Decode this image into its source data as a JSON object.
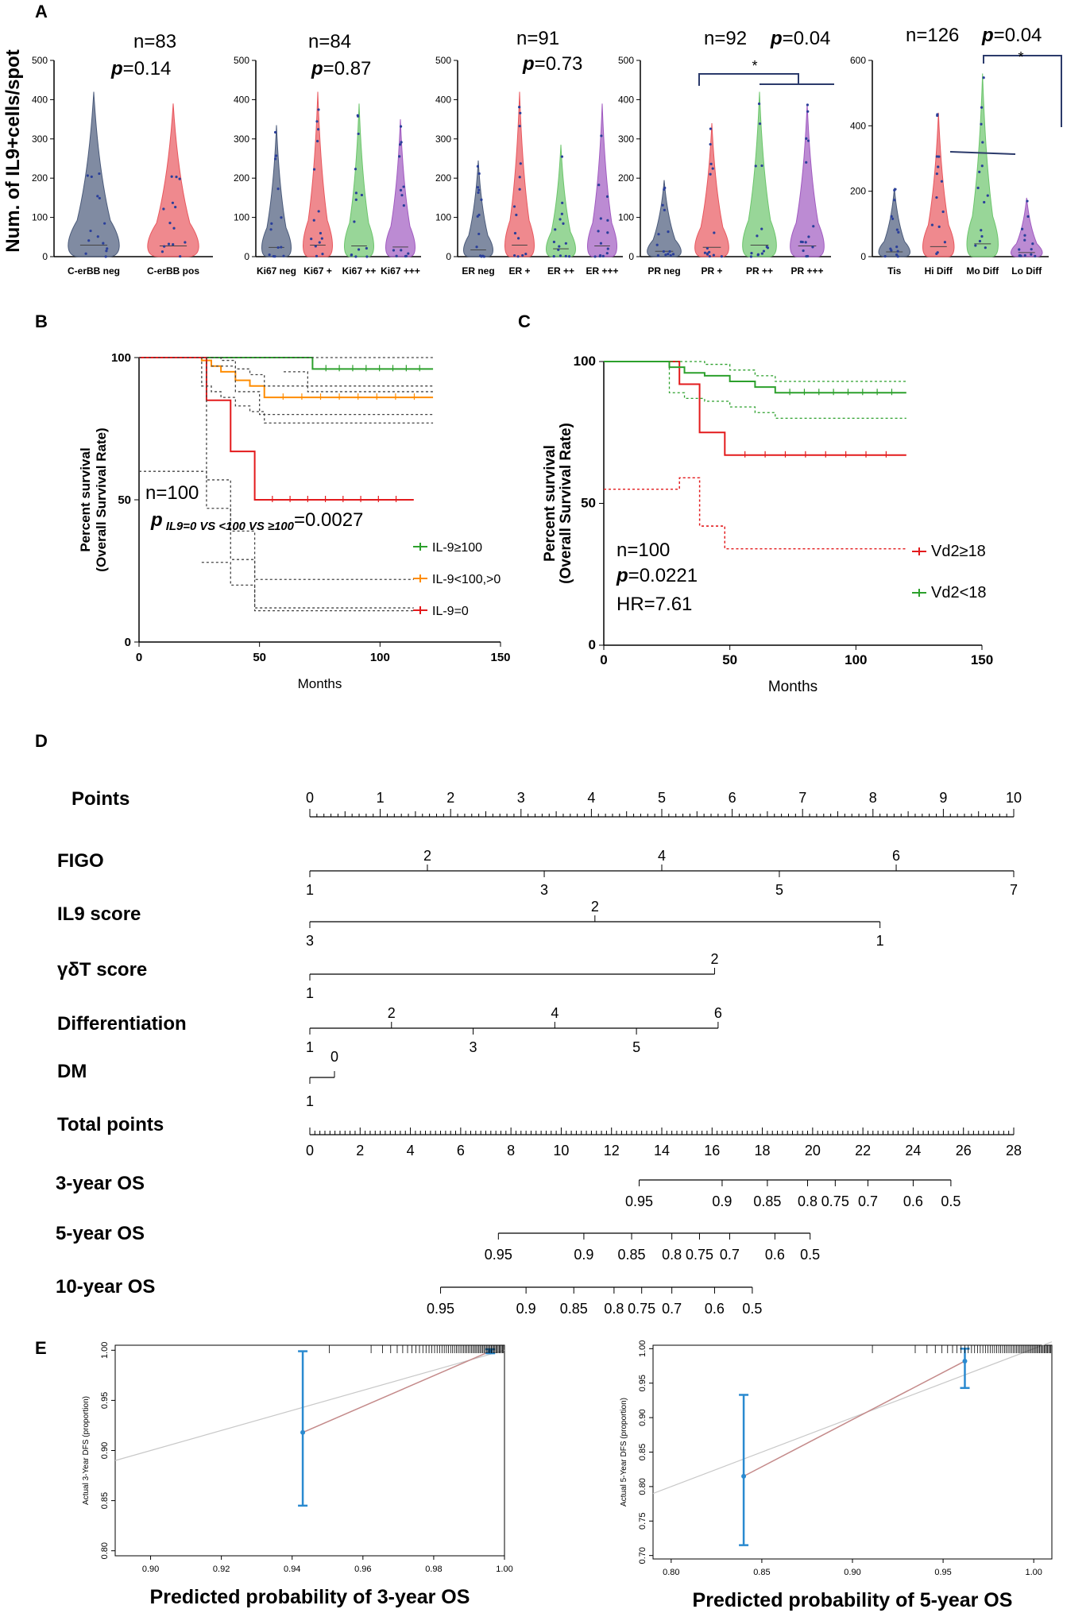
{
  "panel_labels": {
    "a": "A",
    "b": "B",
    "c": "C",
    "d": "D",
    "e": "E"
  },
  "chart_data": [
    {
      "id": "A1",
      "type": "violin",
      "ylabel": "Num. of IL9+cells/spot",
      "ylim": [
        0,
        500
      ],
      "yticks": [
        "0",
        "100",
        "200",
        "300",
        "400",
        "500"
      ],
      "categories": [
        "C-erBB neg",
        "C-erBB pos"
      ],
      "colors": [
        "#4a5a7a",
        "#e8575e"
      ],
      "n_label": "n=83",
      "p_label": "p",
      "p_value": "=0.14",
      "approx_max": [
        420,
        390
      ]
    },
    {
      "id": "A2",
      "type": "violin",
      "ylim": [
        0,
        500
      ],
      "yticks": [
        "0",
        "100",
        "200",
        "300",
        "400",
        "500"
      ],
      "categories": [
        "Ki67 neg",
        "Ki67 +",
        "Ki67 ++",
        "Ki67 +++"
      ],
      "colors": [
        "#4a5a7a",
        "#e8575e",
        "#6cc56c",
        "#a05ac0"
      ],
      "n_label": "n=84",
      "p_label": "p",
      "p_value": "=0.87",
      "approx_max": [
        335,
        420,
        390,
        350
      ]
    },
    {
      "id": "A3",
      "type": "violin",
      "ylim": [
        0,
        500
      ],
      "yticks": [
        "0",
        "100",
        "200",
        "300",
        "400",
        "500"
      ],
      "categories": [
        "ER neg",
        "ER +",
        "ER ++",
        "ER +++"
      ],
      "colors": [
        "#4a5a7a",
        "#e8575e",
        "#6cc56c",
        "#a05ac0"
      ],
      "n_label": "n=91",
      "p_label": "p",
      "p_value": "=0.73",
      "approx_max": [
        245,
        420,
        285,
        390
      ]
    },
    {
      "id": "A4",
      "type": "violin",
      "ylim": [
        0,
        500
      ],
      "yticks": [
        "0",
        "100",
        "200",
        "300",
        "400",
        "500"
      ],
      "categories": [
        "PR neg",
        "PR +",
        "PR ++",
        "PR +++"
      ],
      "colors": [
        "#4a5a7a",
        "#e8575e",
        "#6cc56c",
        "#a05ac0"
      ],
      "n_label": "n=92",
      "p_label": "p",
      "p_value": "=0.04",
      "star": "*",
      "approx_max": [
        195,
        340,
        420,
        390
      ]
    },
    {
      "id": "A5",
      "type": "violin",
      "ylim": [
        0,
        600
      ],
      "yticks": [
        "0",
        "200",
        "400",
        "600"
      ],
      "categories": [
        "Tis",
        "Hi Diff",
        "Mo Diff",
        "Lo Diff"
      ],
      "colors": [
        "#4a5a7a",
        "#e8575e",
        "#6cc56c",
        "#a05ac0"
      ],
      "n_label": "n=126",
      "p_label": "p",
      "p_value": "=0.04",
      "star": "*",
      "approx_max": [
        210,
        440,
        560,
        180
      ]
    },
    {
      "id": "B",
      "type": "line",
      "title": "",
      "xlabel": "Months",
      "ylabel1": "Percent survival",
      "ylabel2": "(Overall Survival Rate)",
      "xlim": [
        0,
        150
      ],
      "ylim": [
        0,
        100
      ],
      "xticks": [
        "0",
        "50",
        "100",
        "150"
      ],
      "yticks": [
        "0",
        "50",
        "100"
      ],
      "n_label": "n=100",
      "p_label": "p",
      "p_sub": "IL9=0 VS <100 VS ≥100",
      "p_value": "=0.0027",
      "series": [
        {
          "name": "IL-9≥100",
          "color": "#2ca02c",
          "x": [
            0,
            26,
            70,
            72,
            122
          ],
          "y": [
            100,
            100,
            100,
            96,
            96
          ]
        },
        {
          "name": "IL-9<100,>0",
          "color": "#ff8c00",
          "x": [
            0,
            26,
            30,
            34,
            40,
            46,
            52,
            122
          ],
          "y": [
            100,
            99,
            97,
            95,
            92,
            90,
            86,
            86
          ]
        },
        {
          "name": "IL-9=0",
          "color": "#e31a1c",
          "x": [
            0,
            26,
            28,
            38,
            48,
            114
          ],
          "y": [
            100,
            100,
            85,
            67,
            50,
            50
          ]
        }
      ]
    },
    {
      "id": "C",
      "type": "line",
      "xlabel": "Months",
      "ylabel1": "Percent survival",
      "ylabel2": "(Overall Survival Rate)",
      "xlim": [
        0,
        150
      ],
      "ylim": [
        0,
        100
      ],
      "xticks": [
        "0",
        "50",
        "100",
        "150"
      ],
      "yticks": [
        "0",
        "50",
        "100"
      ],
      "n_label": "n=100",
      "p_label": "p",
      "p_value": "=0.0221",
      "hr_label": "HR=7.61",
      "series": [
        {
          "name": "Vd2≥18",
          "color": "#e31a1c",
          "x": [
            0,
            22,
            30,
            38,
            48,
            120
          ],
          "y": [
            100,
            100,
            92,
            75,
            67,
            67
          ]
        },
        {
          "name": "Vd2<18",
          "color": "#2ca02c",
          "x": [
            0,
            26,
            32,
            40,
            50,
            60,
            68,
            120
          ],
          "y": [
            100,
            98,
            96,
            95,
            93,
            91,
            89,
            89
          ]
        }
      ]
    },
    {
      "id": "E1",
      "type": "calibration",
      "xlabel": "Predicted probability of 3-year OS",
      "ylabel": "Actual 3-Year DFS (proportion)",
      "xlim": [
        0.89,
        1.0
      ],
      "ylim": [
        0.795,
        1.005
      ],
      "xticks": [
        "0.90",
        "0.92",
        "0.94",
        "0.96",
        "0.98",
        "1.00"
      ],
      "yticks": [
        "0.80",
        "0.85",
        "0.90",
        "0.95",
        "1.00"
      ],
      "points": [
        {
          "x": 0.943,
          "y": 0.918,
          "lo": 0.845,
          "hi": 0.999
        },
        {
          "x": 0.996,
          "y": 0.999,
          "lo": 0.997,
          "hi": 1.001
        }
      ]
    },
    {
      "id": "E2",
      "type": "calibration",
      "xlabel": "Predicted probability of 5-year OS",
      "ylabel": "Actual 5-Year DFS (proportion)",
      "xlim": [
        0.79,
        1.01
      ],
      "ylim": [
        0.695,
        1.005
      ],
      "xticks": [
        "0.80",
        "0.85",
        "0.90",
        "0.95",
        "1.00"
      ],
      "yticks": [
        "0.70",
        "0.75",
        "0.80",
        "0.85",
        "0.90",
        "0.95",
        "1.00"
      ],
      "points": [
        {
          "x": 0.84,
          "y": 0.815,
          "lo": 0.715,
          "hi": 0.933
        },
        {
          "x": 0.962,
          "y": 0.982,
          "lo": 0.943,
          "hi": 1.0
        }
      ]
    }
  ],
  "nomogram": {
    "rows": [
      {
        "label": "Points",
        "type": "points",
        "ticks": [
          "0",
          "1",
          "2",
          "3",
          "4",
          "5",
          "6",
          "7",
          "8",
          "9",
          "10"
        ]
      },
      {
        "label": "FIGO",
        "above": [
          "2",
          "4",
          "6"
        ],
        "below": [
          "1",
          "3",
          "5",
          "7"
        ]
      },
      {
        "label": "IL9 score",
        "above": [
          "2"
        ],
        "below": [
          "3",
          "1"
        ]
      },
      {
        "label": "γδT score",
        "above": [
          "2"
        ],
        "below": [
          "1"
        ]
      },
      {
        "label": "Differentiation",
        "above": [
          "2",
          "4",
          "6"
        ],
        "below": [
          "1",
          "3",
          "5"
        ]
      },
      {
        "label": "DM",
        "above": [
          "0"
        ],
        "below": [
          "1"
        ]
      },
      {
        "label": "Total points",
        "type": "total",
        "ticks": [
          "0",
          "2",
          "4",
          "6",
          "8",
          "10",
          "12",
          "14",
          "16",
          "18",
          "20",
          "22",
          "24",
          "26",
          "28"
        ]
      },
      {
        "label": "3-year OS",
        "ticks": [
          "0.95",
          "0.9",
          "0.85",
          "0.8",
          "0.75",
          "0.7",
          "0.6",
          "0.5"
        ]
      },
      {
        "label": "5-year OS",
        "ticks": [
          "0.95",
          "0.9",
          "0.85",
          "0.8",
          "0.75",
          "0.7",
          "0.6",
          "0.5"
        ]
      },
      {
        "label": "10-year OS",
        "ticks": [
          "0.95",
          "0.9",
          "0.85",
          "0.8",
          "0.75",
          "0.7",
          "0.6",
          "0.5"
        ]
      }
    ]
  }
}
